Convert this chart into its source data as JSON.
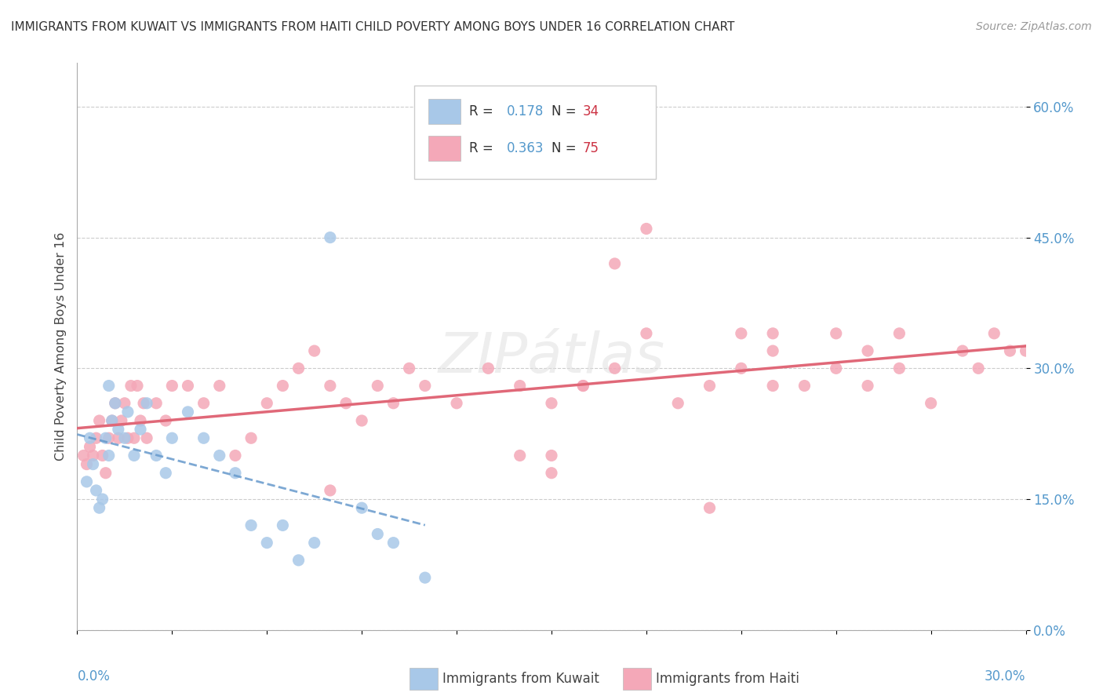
{
  "title": "IMMIGRANTS FROM KUWAIT VS IMMIGRANTS FROM HAITI CHILD POVERTY AMONG BOYS UNDER 16 CORRELATION CHART",
  "source": "Source: ZipAtlas.com",
  "ylabel": "Child Poverty Among Boys Under 16",
  "ytick_vals": [
    0.0,
    15.0,
    30.0,
    45.0,
    60.0
  ],
  "xlim": [
    0.0,
    30.0
  ],
  "ylim": [
    0.0,
    65.0
  ],
  "kuwait_R": 0.178,
  "kuwait_N": 34,
  "haiti_R": 0.363,
  "haiti_N": 75,
  "kuwait_color": "#a8c8e8",
  "haiti_color": "#f4a8b8",
  "kuwait_line_color": "#6699cc",
  "haiti_line_color": "#e06878",
  "kuwait_x": [
    0.3,
    0.4,
    0.5,
    0.6,
    0.7,
    0.8,
    0.9,
    1.0,
    1.0,
    1.1,
    1.2,
    1.3,
    1.5,
    1.6,
    1.8,
    2.0,
    2.2,
    2.5,
    2.8,
    3.0,
    3.5,
    4.0,
    4.5,
    5.0,
    5.5,
    6.0,
    6.5,
    7.0,
    7.5,
    8.0,
    9.0,
    9.5,
    10.0,
    11.0
  ],
  "kuwait_y": [
    17.0,
    22.0,
    19.0,
    16.0,
    14.0,
    15.0,
    22.0,
    20.0,
    28.0,
    24.0,
    26.0,
    23.0,
    22.0,
    25.0,
    20.0,
    23.0,
    26.0,
    20.0,
    18.0,
    22.0,
    25.0,
    22.0,
    20.0,
    18.0,
    12.0,
    10.0,
    12.0,
    8.0,
    10.0,
    45.0,
    14.0,
    11.0,
    10.0,
    6.0
  ],
  "haiti_x": [
    0.2,
    0.3,
    0.4,
    0.5,
    0.6,
    0.7,
    0.8,
    0.9,
    1.0,
    1.1,
    1.2,
    1.3,
    1.4,
    1.5,
    1.6,
    1.7,
    1.8,
    1.9,
    2.0,
    2.1,
    2.2,
    2.5,
    2.8,
    3.0,
    3.5,
    4.0,
    4.5,
    5.0,
    5.5,
    6.0,
    6.5,
    7.0,
    7.5,
    8.0,
    8.5,
    9.0,
    9.5,
    10.0,
    10.5,
    11.0,
    12.0,
    13.0,
    14.0,
    15.0,
    16.0,
    17.0,
    18.0,
    19.0,
    20.0,
    21.0,
    22.0,
    23.0,
    24.0,
    25.0,
    26.0,
    27.0,
    28.0,
    28.5,
    29.0,
    29.5,
    30.0,
    18.0,
    20.0,
    22.0,
    14.0,
    15.0,
    16.0,
    22.0,
    24.0,
    25.0,
    26.0,
    21.0,
    17.0,
    15.0,
    8.0
  ],
  "haiti_y": [
    20.0,
    19.0,
    21.0,
    20.0,
    22.0,
    24.0,
    20.0,
    18.0,
    22.0,
    24.0,
    26.0,
    22.0,
    24.0,
    26.0,
    22.0,
    28.0,
    22.0,
    28.0,
    24.0,
    26.0,
    22.0,
    26.0,
    24.0,
    28.0,
    28.0,
    26.0,
    28.0,
    20.0,
    22.0,
    26.0,
    28.0,
    30.0,
    32.0,
    28.0,
    26.0,
    24.0,
    28.0,
    26.0,
    30.0,
    28.0,
    26.0,
    30.0,
    28.0,
    26.0,
    28.0,
    30.0,
    34.0,
    26.0,
    28.0,
    30.0,
    32.0,
    28.0,
    30.0,
    28.0,
    30.0,
    26.0,
    32.0,
    30.0,
    34.0,
    32.0,
    32.0,
    46.0,
    14.0,
    28.0,
    20.0,
    20.0,
    28.0,
    34.0,
    34.0,
    32.0,
    34.0,
    34.0,
    42.0,
    18.0,
    16.0
  ]
}
